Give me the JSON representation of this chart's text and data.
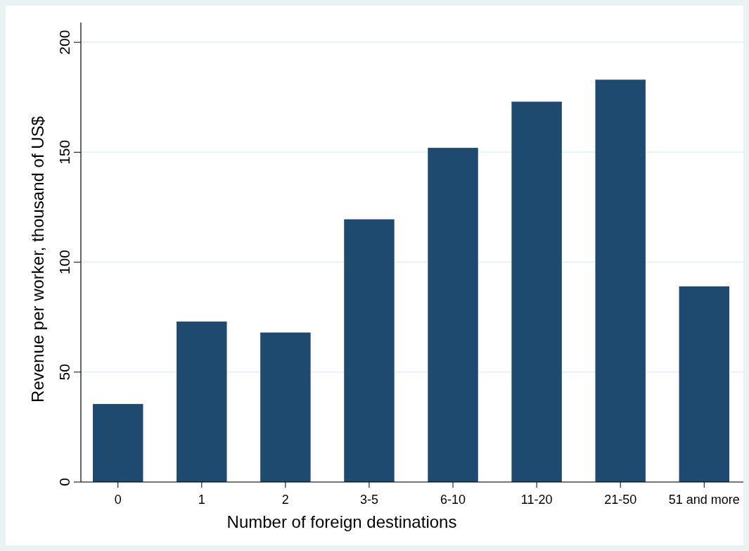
{
  "chart_data": {
    "type": "bar",
    "xlabel": "Number of foreign destinations",
    "ylabel": "Revenue per worker, thousand of US$",
    "categories": [
      "0",
      "1",
      "2",
      "3-5",
      "6-10",
      "11-20",
      "21-50",
      "51 and more"
    ],
    "values": [
      35.5,
      73,
      68,
      119.5,
      152,
      173,
      183,
      89
    ],
    "color": "#1f4a6f",
    "ylim": [
      0,
      209
    ],
    "yticks": [
      0,
      50,
      100,
      150,
      200
    ],
    "grid": "y"
  }
}
